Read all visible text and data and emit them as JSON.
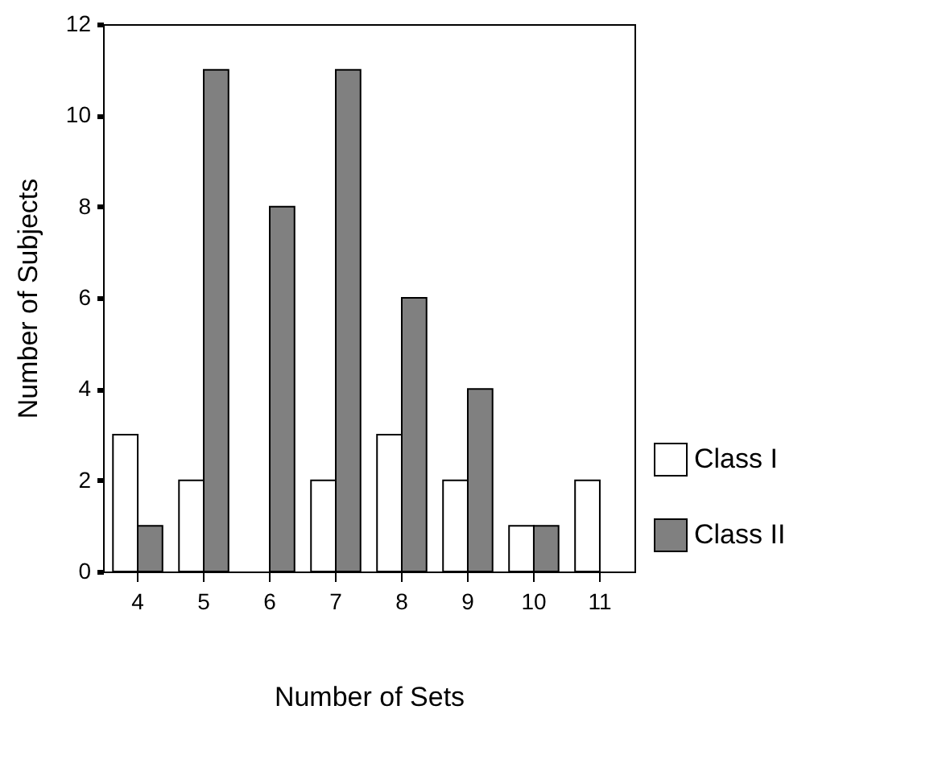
{
  "chart_data": {
    "type": "bar",
    "xlabel": "Number of Sets",
    "ylabel": "Number of Subjects",
    "categories": [
      "4",
      "5",
      "6",
      "7",
      "8",
      "9",
      "10",
      "11"
    ],
    "series": [
      {
        "name": "Class I",
        "color": "#ffffff",
        "values": [
          3,
          2,
          null,
          2,
          3,
          2,
          1,
          2
        ]
      },
      {
        "name": "Class II",
        "color": "#808080",
        "values": [
          1,
          11,
          8,
          11,
          6,
          4,
          1,
          null
        ]
      }
    ],
    "ylim": [
      0,
      12
    ],
    "yticks": [
      0,
      2,
      4,
      6,
      8,
      10,
      12
    ],
    "grid": false,
    "legend": "right"
  }
}
